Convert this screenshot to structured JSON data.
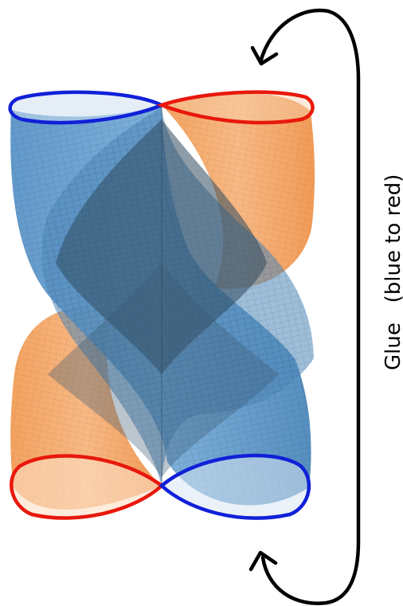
{
  "diagram": {
    "glue_label": "Glue   (blue to red)",
    "colors": {
      "background": "#ffffff",
      "blue_edge": "#1020d8",
      "red_edge": "#e8180c",
      "blue_surface": "#5b9ad0",
      "orange_surface": "#f4a15e",
      "mesh": "#1b3a5a",
      "arrow": "#000000"
    },
    "icons": {
      "top_arrow": "arrowhead-icon",
      "bottom_arrow": "arrowhead-icon"
    }
  }
}
